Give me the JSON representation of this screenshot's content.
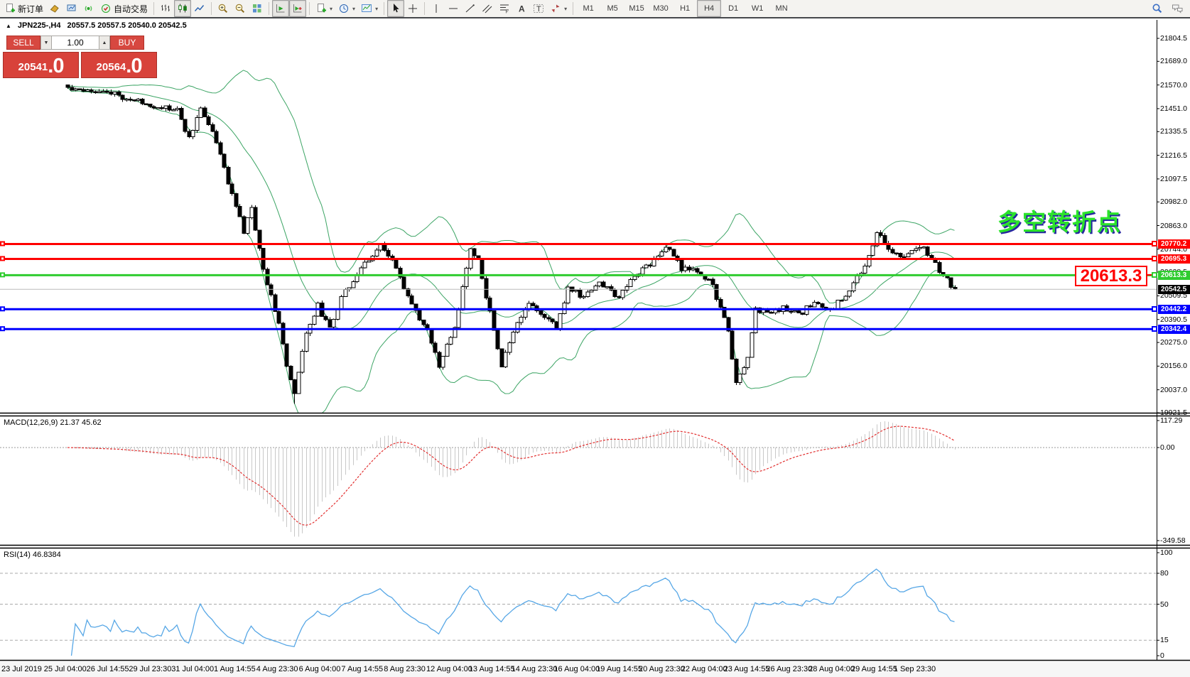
{
  "toolbar": {
    "groups": [
      {
        "items": [
          {
            "name": "new-order-button",
            "icon": "doc-plus",
            "label": "新订单"
          },
          {
            "name": "profiles-button",
            "icon": "profiles"
          },
          {
            "name": "market-watch-button",
            "icon": "market-watch"
          },
          {
            "name": "signals-button",
            "icon": "signals"
          },
          {
            "name": "autotrading-button",
            "icon": "autotrading",
            "label": "自动交易"
          }
        ]
      },
      {
        "items": [
          {
            "name": "bar-chart-button",
            "icon": "bars"
          },
          {
            "name": "candlestick-chart-button",
            "icon": "candles",
            "pressed": true
          },
          {
            "name": "line-chart-button",
            "icon": "line-chart"
          }
        ]
      },
      {
        "items": [
          {
            "name": "zoom-in-button",
            "icon": "zoom-in"
          },
          {
            "name": "zoom-out-button",
            "icon": "zoom-out"
          },
          {
            "name": "tile-windows-button",
            "icon": "tile"
          }
        ]
      },
      {
        "items": [
          {
            "name": "auto-scroll-button",
            "icon": "auto-scroll",
            "pressed": true
          },
          {
            "name": "chart-shift-button",
            "icon": "chart-shift",
            "pressed": true
          }
        ]
      },
      {
        "items": [
          {
            "name": "indicators-button",
            "icon": "doc-plus",
            "dropdown": true
          },
          {
            "name": "periods-button",
            "icon": "clock",
            "dropdown": true
          },
          {
            "name": "templates-button",
            "icon": "template",
            "dropdown": true
          }
        ]
      },
      {
        "items": [
          {
            "name": "cursor-button",
            "icon": "cursor",
            "pressed": true
          },
          {
            "name": "crosshair-button",
            "icon": "crosshair"
          }
        ]
      },
      {
        "items": [
          {
            "name": "vertical-line-button",
            "icon": "vline"
          },
          {
            "name": "horizontal-line-button",
            "icon": "hline"
          },
          {
            "name": "trendline-button",
            "icon": "trendline"
          },
          {
            "name": "channel-button",
            "icon": "channel"
          },
          {
            "name": "fibonacci-button",
            "icon": "fibonacci"
          },
          {
            "name": "text-button",
            "icon": "text-a"
          },
          {
            "name": "label-button",
            "icon": "label-t"
          },
          {
            "name": "arrows-button",
            "icon": "arrows",
            "dropdown": true
          }
        ]
      }
    ],
    "timeframes": [
      "M1",
      "M5",
      "M15",
      "M30",
      "H1",
      "H4",
      "D1",
      "W1",
      "MN"
    ],
    "selected_timeframe": "H4",
    "right_icons": [
      {
        "name": "search-icon",
        "icon": "search"
      },
      {
        "name": "chat-icon",
        "icon": "chat"
      }
    ]
  },
  "chart_header": {
    "collapse_glyph": "▲",
    "symbol_title": "JPN225-,H4",
    "ohlc_readout": "20557.5 20557.5 20540.0 20542.5"
  },
  "one_click": {
    "sell_label": "SELL",
    "buy_label": "BUY",
    "volume": "1.00",
    "volume_down_glyph": "▼",
    "volume_up_glyph": "▲",
    "sell_price": {
      "main": "20541",
      "big": ".0"
    },
    "buy_price": {
      "main": "20564",
      "big": ".0"
    }
  },
  "annotations": {
    "turning_point_text": "多空转折点",
    "turning_point_color": "#2be32b",
    "highlight_price_text": "20613.3",
    "highlight_color": "#ff0000"
  },
  "price_axis": {
    "ticks": [
      21804.5,
      21689.0,
      21570.0,
      21451.0,
      21335.5,
      21216.5,
      21097.5,
      20982.0,
      20863.0,
      20744.0,
      20628.5,
      20509.5,
      20390.5,
      20275.0,
      20156.0,
      20037.0,
      19921.5
    ]
  },
  "levels": [
    {
      "price": 20770.2,
      "label": "20770.2",
      "color": "#ff0000",
      "width": 3
    },
    {
      "price": 20695.3,
      "label": "20695.3",
      "color": "#ff0000",
      "width": 3
    },
    {
      "price": 20613.3,
      "label": "20613.3",
      "color": "#2fcc2f",
      "width": 3
    },
    {
      "price": 20542.5,
      "label": "20542.5",
      "color": "#bbbbbb",
      "width": 1,
      "tag_bg": "#000000",
      "current": true
    },
    {
      "price": 20442.2,
      "label": "20442.2",
      "color": "#0000ff",
      "width": 3
    },
    {
      "price": 20342.4,
      "label": "20342.4",
      "color": "#0000ff",
      "width": 3
    }
  ],
  "macd_pane": {
    "label": "MACD(12,26,9) 21.37 45.62",
    "ticks": [
      {
        "v": 117.29,
        "label": "117.29"
      },
      {
        "v": 0,
        "label": "0.00"
      },
      {
        "v": -349.58,
        "label": "-349.58"
      }
    ],
    "hist_color": "#c8c8c8",
    "signal_color": "#e23030"
  },
  "rsi_pane": {
    "label": "RSI(14) 46.8384",
    "ticks": [
      {
        "v": 100,
        "label": "100"
      },
      {
        "v": 80,
        "label": "80"
      },
      {
        "v": 50,
        "label": "50"
      },
      {
        "v": 15,
        "label": "15"
      },
      {
        "v": 0,
        "label": "0"
      }
    ],
    "levels": [
      80,
      50,
      15
    ],
    "line_color": "#57a7e6"
  },
  "x_axis": {
    "labels": [
      "23 Jul 2019",
      "25 Jul 04:00",
      "26 Jul 14:55",
      "29 Jul 23:30",
      "31 Jul 04:00",
      "1 Aug 14:55",
      "4 Aug 23:30",
      "6 Aug 04:00",
      "7 Aug 14:55",
      "8 Aug 23:30",
      "12 Aug 04:00",
      "13 Aug 14:55",
      "14 Aug 23:30",
      "16 Aug 04:00",
      "19 Aug 14:55",
      "20 Aug 23:30",
      "22 Aug 04:00",
      "23 Aug 14:55",
      "26 Aug 23:30",
      "28 Aug 04:00",
      "29 Aug 14:55",
      "1 Sep 23:30"
    ]
  },
  "chart_data": {
    "type": "candlestick",
    "symbol": "JPN225-",
    "timeframe": "H4",
    "visible_ohlc": {
      "open": 20557.5,
      "high": 20557.5,
      "low": 20540.0,
      "close": 20542.5
    },
    "last_close": 20542.5,
    "price_axis_range": [
      19921.5,
      21804.5
    ],
    "candle_count": 228,
    "noise": 30,
    "wick": 13,
    "spike_low_index": 58,
    "spike_low": 19966,
    "waypoints": [
      [
        0,
        21555
      ],
      [
        8,
        21545
      ],
      [
        19,
        21480
      ],
      [
        28,
        21440
      ],
      [
        31,
        21300
      ],
      [
        34,
        21450
      ],
      [
        37,
        21340
      ],
      [
        45,
        20830
      ],
      [
        47,
        20950
      ],
      [
        50,
        20640
      ],
      [
        54,
        20380
      ],
      [
        56,
        20150
      ],
      [
        58,
        20010
      ],
      [
        61,
        20330
      ],
      [
        64,
        20460
      ],
      [
        67,
        20340
      ],
      [
        70,
        20510
      ],
      [
        74,
        20620
      ],
      [
        78,
        20720
      ],
      [
        80,
        20760
      ],
      [
        84,
        20650
      ],
      [
        88,
        20460
      ],
      [
        92,
        20330
      ],
      [
        95,
        20160
      ],
      [
        99,
        20350
      ],
      [
        103,
        20740
      ],
      [
        105,
        20690
      ],
      [
        108,
        20420
      ],
      [
        111,
        20160
      ],
      [
        114,
        20330
      ],
      [
        118,
        20470
      ],
      [
        121,
        20420
      ],
      [
        125,
        20350
      ],
      [
        128,
        20550
      ],
      [
        132,
        20500
      ],
      [
        136,
        20580
      ],
      [
        141,
        20500
      ],
      [
        145,
        20620
      ],
      [
        149,
        20670
      ],
      [
        153,
        20760
      ],
      [
        157,
        20650
      ],
      [
        162,
        20620
      ],
      [
        165,
        20560
      ],
      [
        169,
        20330
      ],
      [
        171,
        20070
      ],
      [
        174,
        20200
      ],
      [
        176,
        20450
      ],
      [
        179,
        20420
      ],
      [
        183,
        20450
      ],
      [
        187,
        20410
      ],
      [
        191,
        20480
      ],
      [
        195,
        20430
      ],
      [
        199,
        20520
      ],
      [
        204,
        20650
      ],
      [
        207,
        20830
      ],
      [
        210,
        20750
      ],
      [
        214,
        20700
      ],
      [
        217,
        20760
      ],
      [
        219,
        20750
      ],
      [
        222,
        20670
      ],
      [
        224,
        20610
      ],
      [
        227,
        20542.5
      ]
    ],
    "indicators": [
      "Bollinger Bands(20,2)",
      "MACD(12,26,9)",
      "RSI(14)"
    ],
    "bollinger_color": "#3da565",
    "horizontal_levels": [
      20770.2,
      20695.3,
      20613.3,
      20442.2,
      20342.4
    ],
    "current_price": 20542.5
  }
}
